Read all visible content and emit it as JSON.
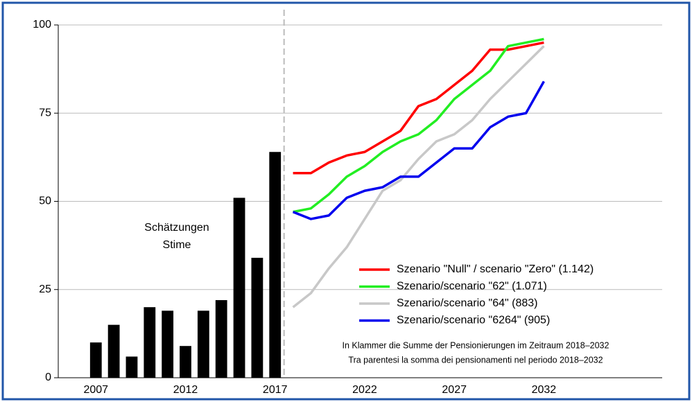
{
  "chart_data": {
    "type": "combo",
    "annotation": [
      "Schätzungen",
      "Stime"
    ],
    "notes": [
      "In Klammer die Summe der Pensionierungen im Zeitraum 2018–2032",
      "Tra parentesi la somma dei pensionamenti nel periodo 2018–2032"
    ],
    "bars": {
      "x": [
        2007,
        2008,
        2009,
        2010,
        2011,
        2012,
        2013,
        2014,
        2015,
        2016,
        2017
      ],
      "values": [
        10,
        15,
        6,
        20,
        19,
        9,
        19,
        22,
        51,
        34,
        64
      ],
      "color": "#000000"
    },
    "x": [
      2018,
      2019,
      2020,
      2021,
      2022,
      2023,
      2024,
      2025,
      2026,
      2027,
      2028,
      2029,
      2030,
      2031,
      2032
    ],
    "series": [
      {
        "name": "Szenario \"Null\" / scenario \"Zero\" (1.142)",
        "color": "#ff0000",
        "values": [
          58,
          58,
          61,
          63,
          64,
          67,
          70,
          77,
          79,
          83,
          87,
          93,
          93,
          94,
          95
        ]
      },
      {
        "name": "Szenario/scenario \"62\" (1.071)",
        "color": "#22ee22",
        "values": [
          47,
          48,
          52,
          57,
          60,
          64,
          67,
          69,
          73,
          79,
          83,
          87,
          94,
          95,
          96
        ]
      },
      {
        "name": "Szenario/scenario \"64\" (883)",
        "color": "#c8c8c8",
        "values": [
          20,
          24,
          31,
          37,
          45,
          53,
          56,
          62,
          67,
          69,
          73,
          79,
          84,
          89,
          94
        ]
      },
      {
        "name": "Szenario/scenario \"6264\" (905)",
        "color": "#0000ee",
        "values": [
          47,
          45,
          46,
          51,
          53,
          54,
          57,
          57,
          61,
          65,
          65,
          71,
          74,
          75,
          84
        ]
      }
    ],
    "divider": 2017.5,
    "xlim": [
      2004.9,
      2038.6
    ],
    "xticks": [
      2007,
      2012,
      2017,
      2022,
      2027,
      2032
    ],
    "ylim": [
      0,
      100
    ],
    "yticks": [
      0,
      25,
      50,
      75,
      100
    ],
    "grid": true,
    "legend": "right"
  }
}
